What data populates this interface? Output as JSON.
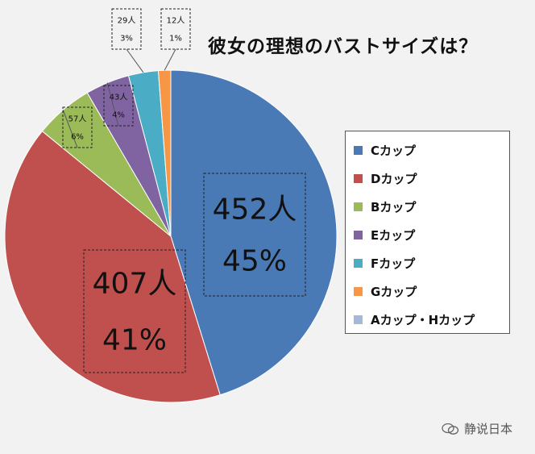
{
  "chart_data": {
    "type": "pie",
    "title": "彼女の理想のバストサイズは？",
    "slices": [
      {
        "label": "Cカップ",
        "count": "452人",
        "percent": "45%",
        "value": 45.2,
        "color": "#4a7ab5"
      },
      {
        "label": "Dカップ",
        "count": "407人",
        "percent": "41%",
        "value": 40.7,
        "color": "#c0504d"
      },
      {
        "label": "Bカップ",
        "count": "57人",
        "percent": "6%",
        "value": 5.7,
        "color": "#9bbb59"
      },
      {
        "label": "Eカップ",
        "count": "43人",
        "percent": "4%",
        "value": 4.3,
        "color": "#8064a2"
      },
      {
        "label": "Fカップ",
        "count": "29人",
        "percent": "3%",
        "value": 2.9,
        "color": "#4bacc6"
      },
      {
        "label": "Gカップ",
        "count": "12人",
        "percent": "1%",
        "value": 1.2,
        "color": "#f79646"
      },
      {
        "label": "Aカップ・Hカップ",
        "count": "",
        "percent": "",
        "value": 0.0,
        "color": "#a6b8d9"
      }
    ],
    "legend_position": "right"
  },
  "watermark": {
    "text": "静说日本",
    "icon": "wechat-logo-icon"
  }
}
